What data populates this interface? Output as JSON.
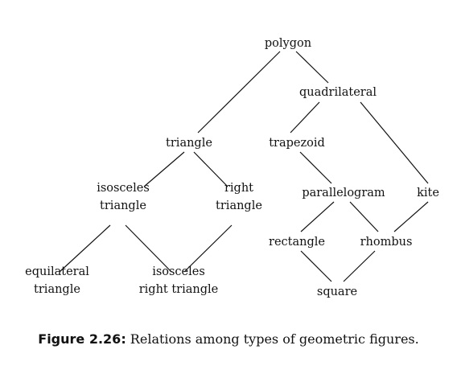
{
  "diagram": {
    "nodes": {
      "polygon": [
        "polygon"
      ],
      "quadrilateral": [
        "quadrilateral"
      ],
      "triangle": [
        "triangle"
      ],
      "trapezoid": [
        "trapezoid"
      ],
      "isosceles_triangle": [
        "isosceles",
        "triangle"
      ],
      "right_triangle": [
        "right",
        "triangle"
      ],
      "parallelogram": [
        "parallelogram"
      ],
      "kite": [
        "kite"
      ],
      "rectangle": [
        "rectangle"
      ],
      "rhombus": [
        "rhombus"
      ],
      "equilateral_triangle": [
        "equilateral",
        "triangle"
      ],
      "isosceles_right_triangle": [
        "isosceles",
        "right triangle"
      ],
      "square": [
        "square"
      ]
    },
    "edges": [
      [
        "polygon",
        "quadrilateral"
      ],
      [
        "polygon",
        "triangle"
      ],
      [
        "quadrilateral",
        "trapezoid"
      ],
      [
        "quadrilateral",
        "kite"
      ],
      [
        "triangle",
        "isosceles_triangle"
      ],
      [
        "triangle",
        "right_triangle"
      ],
      [
        "trapezoid",
        "parallelogram"
      ],
      [
        "parallelogram",
        "rectangle"
      ],
      [
        "parallelogram",
        "rhombus"
      ],
      [
        "kite",
        "rhombus"
      ],
      [
        "isosceles_triangle",
        "equilateral_triangle"
      ],
      [
        "isosceles_triangle",
        "isosceles_right_triangle"
      ],
      [
        "right_triangle",
        "isosceles_right_triangle"
      ],
      [
        "rectangle",
        "square"
      ],
      [
        "rhombus",
        "square"
      ]
    ]
  },
  "caption": {
    "label": "Figure 2.26:",
    "text": " Relations among types of geometric figures."
  }
}
